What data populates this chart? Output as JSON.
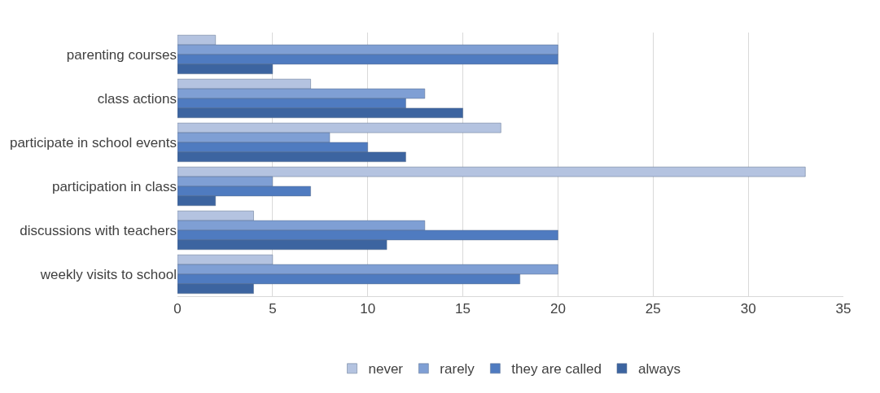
{
  "chart_data": {
    "type": "bar",
    "orientation": "horizontal",
    "categories": [
      "parenting courses",
      "class actions",
      "participate in school events",
      "participation in class",
      "discussions with teachers",
      "weekly visits to school"
    ],
    "series": [
      {
        "name": "never",
        "color": "#b4c3e0",
        "values": [
          2,
          7,
          17,
          33,
          4,
          5
        ]
      },
      {
        "name": "rarely",
        "color": "#7f9fd4",
        "values": [
          20,
          13,
          8,
          5,
          13,
          20
        ]
      },
      {
        "name": "they are called",
        "color": "#4f7bc0",
        "values": [
          20,
          12,
          10,
          7,
          20,
          18
        ]
      },
      {
        "name": "always",
        "color": "#3c64a0",
        "values": [
          5,
          15,
          12,
          2,
          11,
          4
        ]
      }
    ],
    "xlim": [
      0,
      35
    ],
    "xticks": [
      0,
      5,
      10,
      15,
      20,
      25,
      30,
      35
    ],
    "grid": "x",
    "legend": "bottom"
  }
}
